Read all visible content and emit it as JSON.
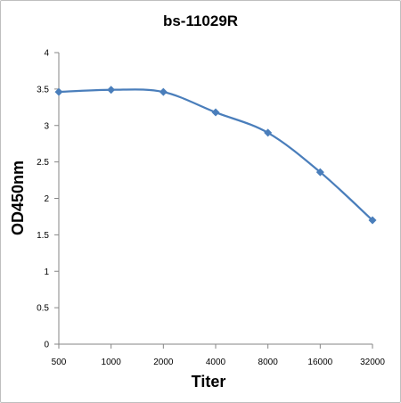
{
  "chart_data": {
    "type": "line",
    "title": "bs-11029R",
    "xlabel": "Titer",
    "ylabel": "OD450nm",
    "categories": [
      "500",
      "1000",
      "2000",
      "4000",
      "8000",
      "16000",
      "32000"
    ],
    "series": [
      {
        "values": [
          3.46,
          3.49,
          3.46,
          3.18,
          2.9,
          2.36,
          1.7
        ]
      }
    ],
    "ylim": [
      0,
      4
    ],
    "yticks": [
      "0",
      "0.5",
      "1",
      "1.5",
      "2",
      "2.5",
      "3",
      "3.5",
      "4"
    ],
    "grid": false,
    "marker": "diamond",
    "smooth": true,
    "colors": {
      "series": "#4a7ebb",
      "axis": "#868686"
    }
  }
}
